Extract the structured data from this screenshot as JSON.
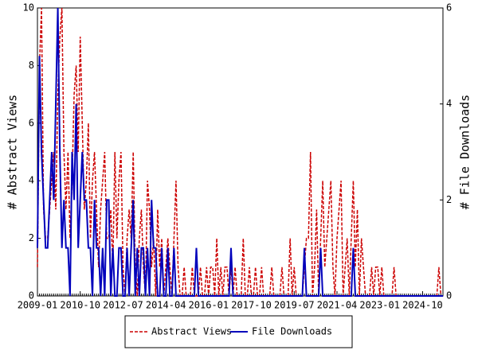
{
  "chart_data": {
    "type": "line",
    "x": [
      "2009-01",
      "2009-02",
      "2009-03",
      "2009-04",
      "2009-05",
      "2009-06",
      "2009-07",
      "2009-08",
      "2009-09",
      "2009-10",
      "2009-11",
      "2009-12",
      "2010-01",
      "2010-02",
      "2010-03",
      "2010-04",
      "2010-05",
      "2010-06",
      "2010-07",
      "2010-08",
      "2010-09",
      "2010-10",
      "2010-11",
      "2010-12",
      "2011-01",
      "2011-02",
      "2011-03",
      "2011-04",
      "2011-05",
      "2011-06",
      "2011-07",
      "2011-08",
      "2011-09",
      "2011-10",
      "2011-11",
      "2011-12",
      "2012-01",
      "2012-02",
      "2012-03",
      "2012-04",
      "2012-05",
      "2012-06",
      "2012-07",
      "2012-08",
      "2012-09",
      "2012-10",
      "2012-11",
      "2012-12",
      "2013-01",
      "2013-02",
      "2013-03",
      "2013-04",
      "2013-05",
      "2013-06",
      "2013-07",
      "2013-08",
      "2013-09",
      "2013-10",
      "2013-11",
      "2013-12",
      "2014-01",
      "2014-02",
      "2014-03",
      "2014-04",
      "2014-05",
      "2014-06",
      "2014-07",
      "2014-08",
      "2014-09",
      "2014-10",
      "2014-11",
      "2014-12",
      "2015-01",
      "2015-02",
      "2015-03",
      "2015-04",
      "2015-05",
      "2015-06",
      "2015-07",
      "2015-08",
      "2015-09",
      "2015-10",
      "2015-11",
      "2015-12",
      "2016-01",
      "2016-02",
      "2016-03",
      "2016-04",
      "2016-05",
      "2016-06",
      "2016-07",
      "2016-08",
      "2016-09",
      "2016-10",
      "2016-11",
      "2016-12",
      "2017-01",
      "2017-02",
      "2017-03",
      "2017-04",
      "2017-05",
      "2017-06",
      "2017-07",
      "2017-08",
      "2017-09",
      "2017-10",
      "2017-11",
      "2017-12",
      "2018-01",
      "2018-02",
      "2018-03",
      "2018-04",
      "2018-05",
      "2018-06",
      "2018-07",
      "2018-08",
      "2018-09",
      "2018-10",
      "2018-11",
      "2018-12",
      "2019-01",
      "2019-02",
      "2019-03",
      "2019-04",
      "2019-05",
      "2019-06",
      "2019-07",
      "2019-08",
      "2019-09",
      "2019-10",
      "2019-11",
      "2019-12",
      "2020-01",
      "2020-02",
      "2020-03",
      "2020-04",
      "2020-05",
      "2020-06",
      "2020-07",
      "2020-08",
      "2020-09",
      "2020-10",
      "2020-11",
      "2020-12",
      "2021-01",
      "2021-02",
      "2021-03",
      "2021-04",
      "2021-05",
      "2021-06",
      "2021-07",
      "2021-08",
      "2021-09",
      "2021-10",
      "2021-11",
      "2021-12",
      "2022-01",
      "2022-02",
      "2022-03",
      "2022-04",
      "2022-05",
      "2022-06",
      "2022-07",
      "2022-08",
      "2022-09",
      "2022-10",
      "2022-11",
      "2022-12",
      "2023-01",
      "2023-02",
      "2023-03",
      "2023-04",
      "2023-05",
      "2023-06",
      "2023-07",
      "2023-08",
      "2023-09",
      "2023-10",
      "2023-11",
      "2023-12",
      "2024-01",
      "2024-02",
      "2024-03",
      "2024-04",
      "2024-05",
      "2024-06",
      "2024-07",
      "2024-08",
      "2024-09",
      "2024-10",
      "2024-11",
      "2024-12",
      "2025-01",
      "2025-02",
      "2025-03",
      "2025-04",
      "2025-05",
      "2025-06",
      "2025-07",
      "2025-08"
    ],
    "xticks": [
      "2009-01",
      "2010-10",
      "2012-07",
      "2014-04",
      "2016-01",
      "2017-10",
      "2019-07",
      "2021-04",
      "2023-01",
      "2024-10"
    ],
    "y_label": "# Abstract Views",
    "y2_label": "# File Downloads",
    "ylim": [
      0,
      10
    ],
    "yticks": [
      0,
      2,
      4,
      6,
      8,
      10
    ],
    "y2lim": [
      0,
      6
    ],
    "y2ticks": [
      0,
      2,
      4,
      6
    ],
    "series": [
      {
        "name": "Abstract Views",
        "color": "#cc0000",
        "dash": true,
        "values": [
          1,
          8,
          10,
          3,
          2,
          2,
          3,
          4,
          5,
          3,
          7,
          9,
          10,
          5,
          3,
          5,
          2,
          4,
          7,
          8,
          5,
          9,
          6,
          3,
          4,
          6,
          2,
          4,
          5,
          3,
          1,
          3,
          4,
          5,
          2,
          2,
          3,
          1,
          5,
          2,
          4,
          5,
          1,
          0,
          2,
          3,
          2,
          5,
          1,
          0,
          2,
          3,
          1,
          0,
          4,
          3,
          1,
          2,
          0,
          3,
          1,
          2,
          0,
          1,
          2,
          1,
          0,
          2,
          4,
          1,
          0,
          0,
          1,
          0,
          0,
          0,
          1,
          0,
          0,
          0,
          1,
          0,
          0,
          1,
          0,
          1,
          1,
          0,
          2,
          0,
          1,
          0,
          1,
          1,
          0,
          1,
          0,
          1,
          0,
          0,
          0,
          2,
          0,
          0,
          1,
          0,
          0,
          1,
          0,
          0,
          1,
          0,
          0,
          0,
          0,
          1,
          0,
          0,
          0,
          0,
          1,
          0,
          0,
          0,
          2,
          0,
          1,
          0,
          0,
          0,
          0,
          1,
          2,
          2,
          5,
          0,
          1,
          3,
          0,
          2,
          4,
          1,
          2,
          3,
          4,
          1,
          0,
          2,
          3,
          4,
          0,
          1,
          2,
          0,
          2,
          4,
          1,
          3,
          0,
          2,
          1,
          0,
          0,
          0,
          1,
          0,
          1,
          1,
          0,
          1,
          0,
          0,
          0,
          0,
          0,
          1,
          0,
          0,
          0,
          0,
          0,
          0,
          0,
          0,
          0,
          0,
          0,
          0,
          0,
          0,
          0,
          0,
          0,
          0,
          0,
          0,
          0,
          1,
          0,
          0
        ]
      },
      {
        "name": "File Downloads",
        "color": "#0000bb",
        "dash": false,
        "axis": "y2",
        "values": [
          1,
          5,
          3,
          2,
          1,
          1,
          2,
          3,
          2,
          4,
          6,
          3,
          1,
          2,
          1,
          1,
          0,
          3,
          2,
          4,
          1,
          2,
          3,
          2,
          2,
          1,
          1,
          0,
          2,
          1,
          1,
          0,
          1,
          0,
          2,
          2,
          0,
          1,
          0,
          0,
          1,
          1,
          0,
          0,
          1,
          0,
          1,
          2,
          0,
          1,
          0,
          1,
          1,
          0,
          1,
          0,
          2,
          1,
          1,
          0,
          0,
          1,
          0,
          0,
          1,
          0,
          0,
          1,
          0,
          0,
          0,
          0,
          0,
          0,
          0,
          0,
          0,
          0,
          1,
          0,
          0,
          0,
          0,
          0,
          0,
          0,
          0,
          0,
          0,
          0,
          0,
          0,
          0,
          0,
          0,
          1,
          0,
          0,
          0,
          0,
          0,
          0,
          0,
          0,
          0,
          0,
          0,
          0,
          0,
          0,
          0,
          0,
          0,
          0,
          0,
          0,
          0,
          0,
          0,
          0,
          0,
          0,
          0,
          0,
          0,
          0,
          0,
          0,
          0,
          0,
          0,
          1,
          0,
          0,
          0,
          0,
          0,
          0,
          0,
          1,
          0,
          0,
          0,
          0,
          0,
          0,
          0,
          0,
          0,
          0,
          0,
          0,
          0,
          0,
          0,
          1,
          0,
          0,
          0,
          0,
          0,
          0,
          0,
          0,
          0,
          0,
          0,
          0,
          0,
          0,
          0,
          0,
          0,
          0,
          0,
          0,
          0,
          0,
          0,
          0,
          0,
          0,
          0,
          0,
          0,
          0,
          0,
          0,
          0,
          0,
          0,
          0,
          0,
          0,
          0,
          0,
          0,
          0,
          0,
          0
        ]
      }
    ]
  }
}
